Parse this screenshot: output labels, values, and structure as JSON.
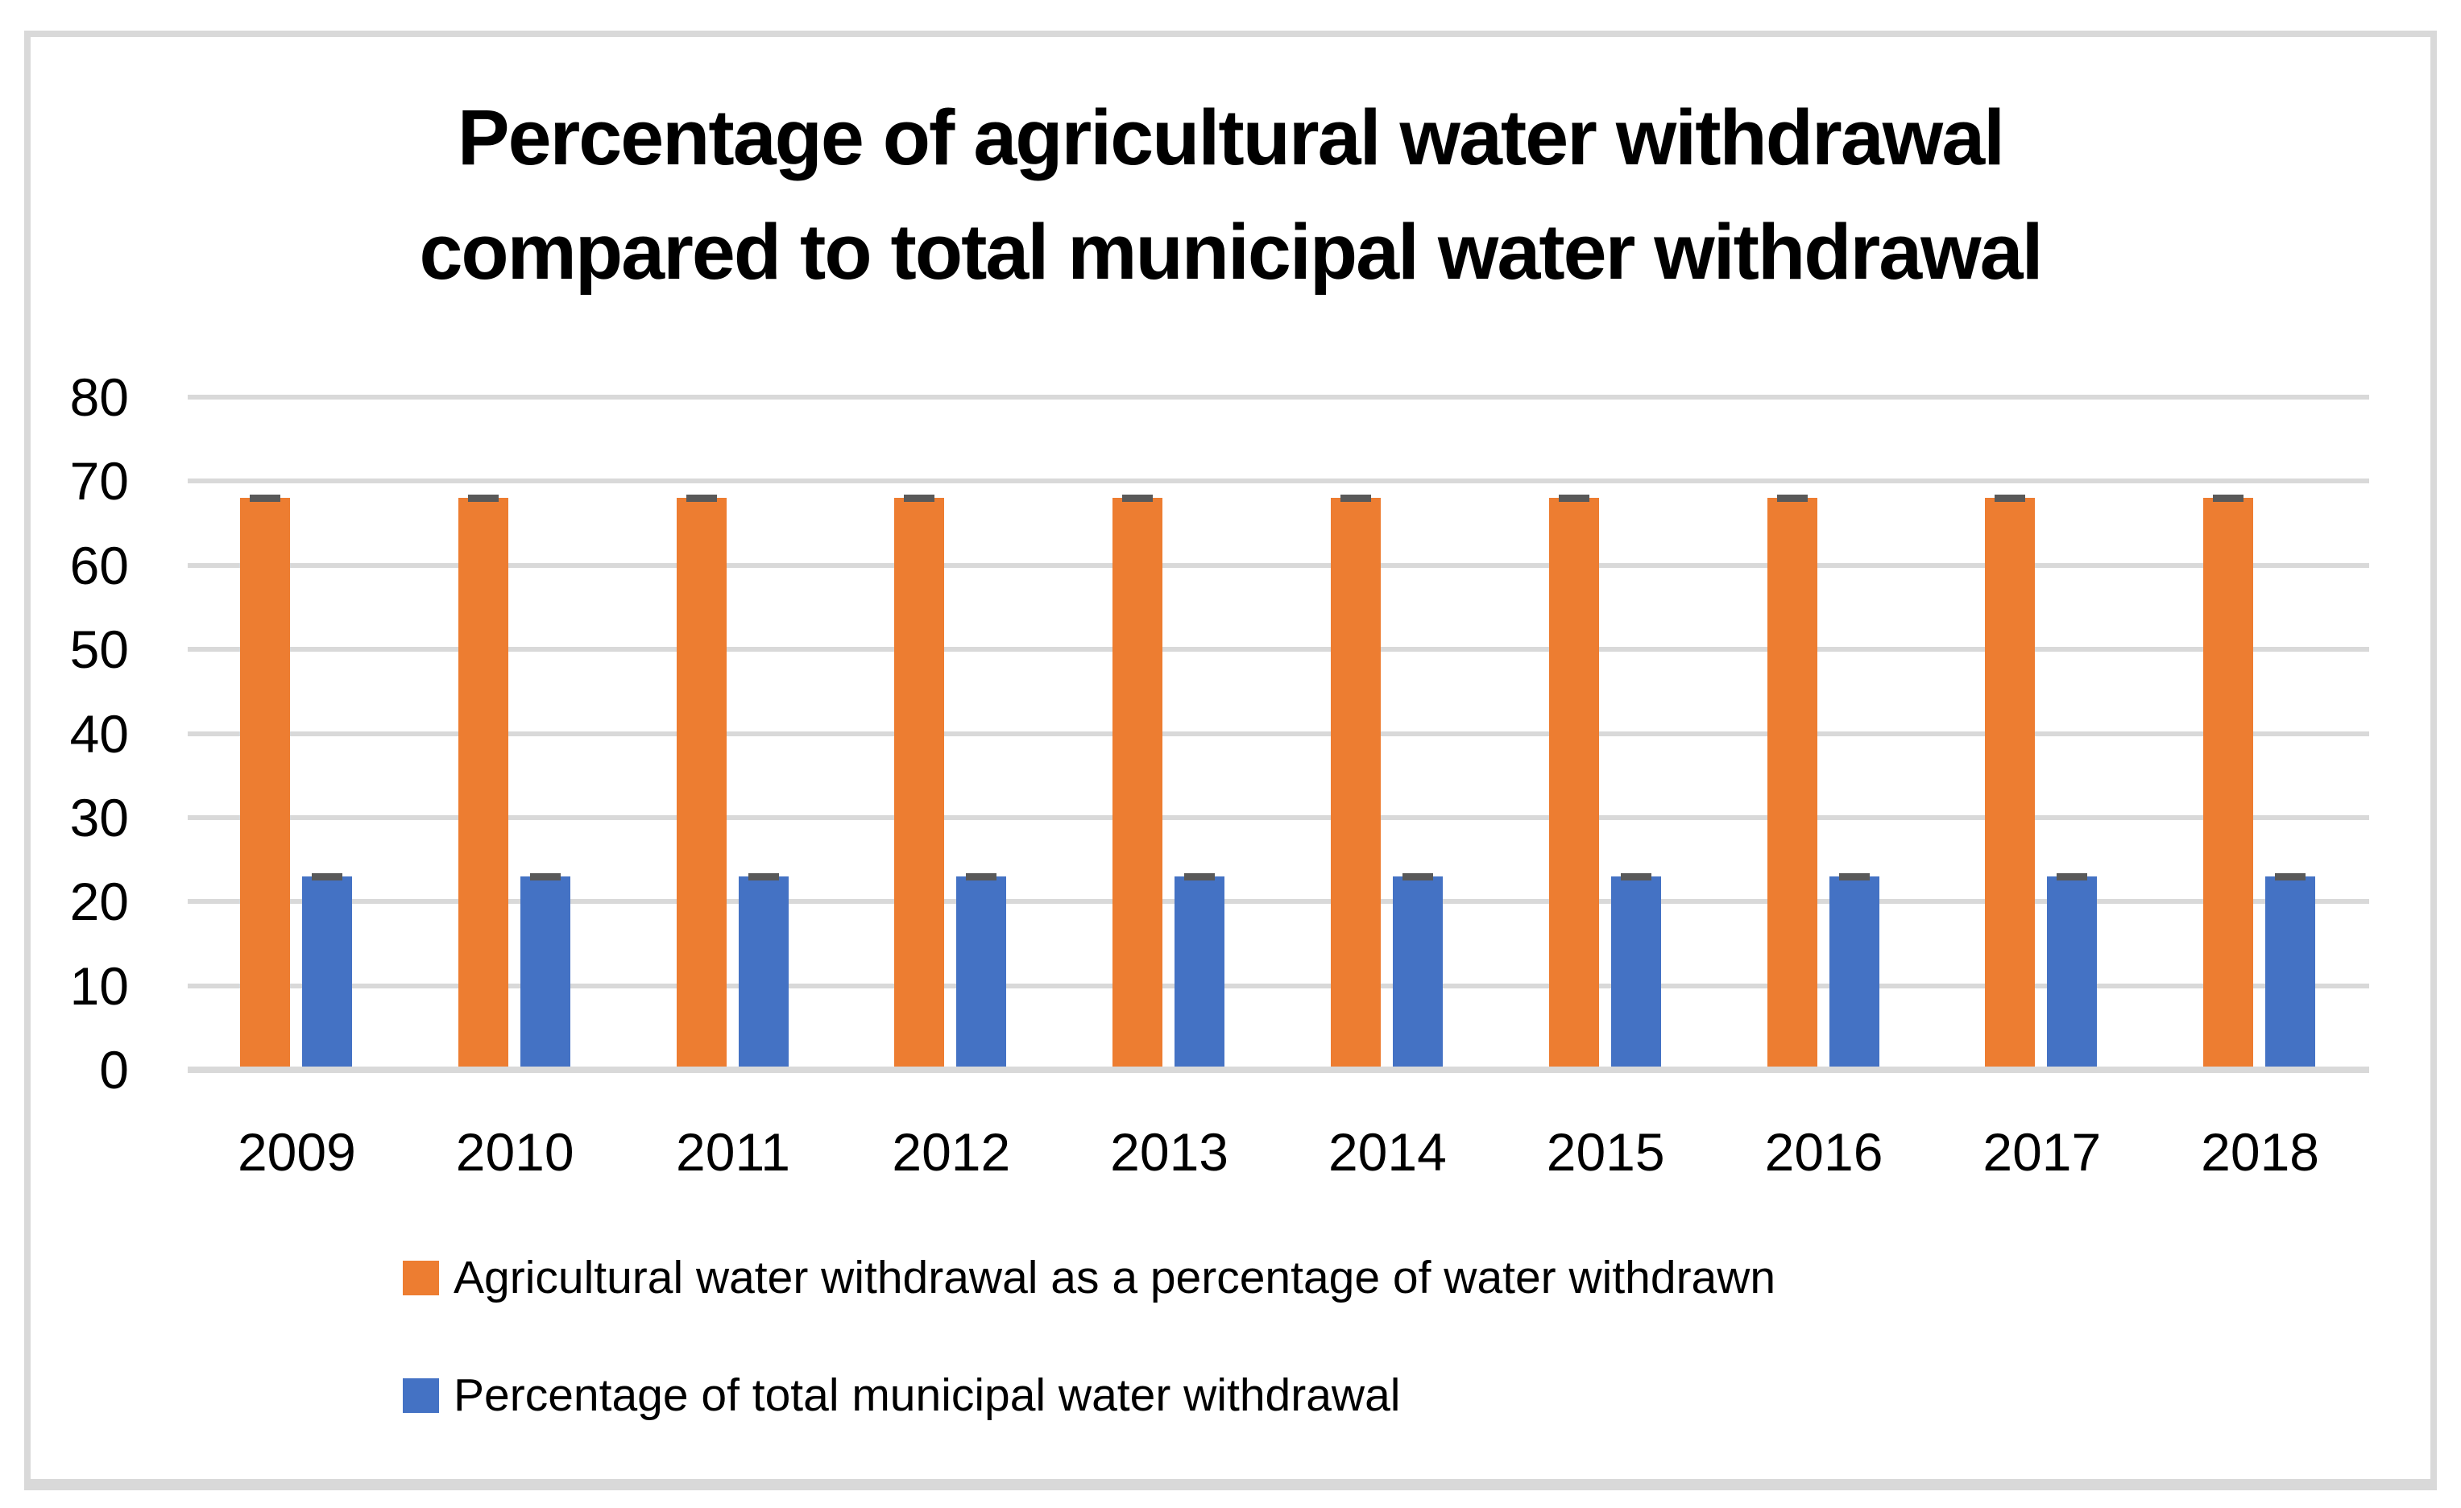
{
  "frame": {
    "border_color": "#D9D9D9"
  },
  "chart_data": {
    "type": "bar",
    "title": "Percentage of agricultural water withdrawal compared to total municipal water withdrawal",
    "title_lines": [
      "Percentage of agricultural water withdrawal",
      "compared to total municipal water withdrawal"
    ],
    "categories": [
      "2009",
      "2010",
      "2011",
      "2012",
      "2013",
      "2014",
      "2015",
      "2016",
      "2017",
      "2018"
    ],
    "series": [
      {
        "name": "Agricultural water withdrawal as a percentage of water withdrawn",
        "color": "#ED7D31",
        "values": [
          67.6,
          67.6,
          67.6,
          67.6,
          67.6,
          67.6,
          67.6,
          67.6,
          67.6,
          67.6
        ]
      },
      {
        "name": "Percentage of total municipal water withdrawal",
        "color": "#4472C4",
        "values": [
          22.6,
          22.6,
          22.6,
          22.6,
          22.6,
          22.6,
          22.6,
          22.6,
          22.6,
          22.6
        ]
      }
    ],
    "error_bar_caps": {
      "visible": true,
      "color": "#595959"
    },
    "y_axis": {
      "min": 0,
      "max": 80,
      "step": 10,
      "tick_labels": [
        "0",
        "10",
        "20",
        "30",
        "40",
        "50",
        "60",
        "70",
        "80"
      ]
    },
    "x_axis": {
      "tick_labels": [
        "2009",
        "2010",
        "2011",
        "2012",
        "2013",
        "2014",
        "2015",
        "2016",
        "2017",
        "2018"
      ]
    },
    "gridlines": {
      "horizontal": true,
      "vertical": false,
      "color": "#D9D9D9"
    },
    "legend": {
      "position": "bottom-left"
    },
    "ylim": [
      0,
      80
    ]
  }
}
